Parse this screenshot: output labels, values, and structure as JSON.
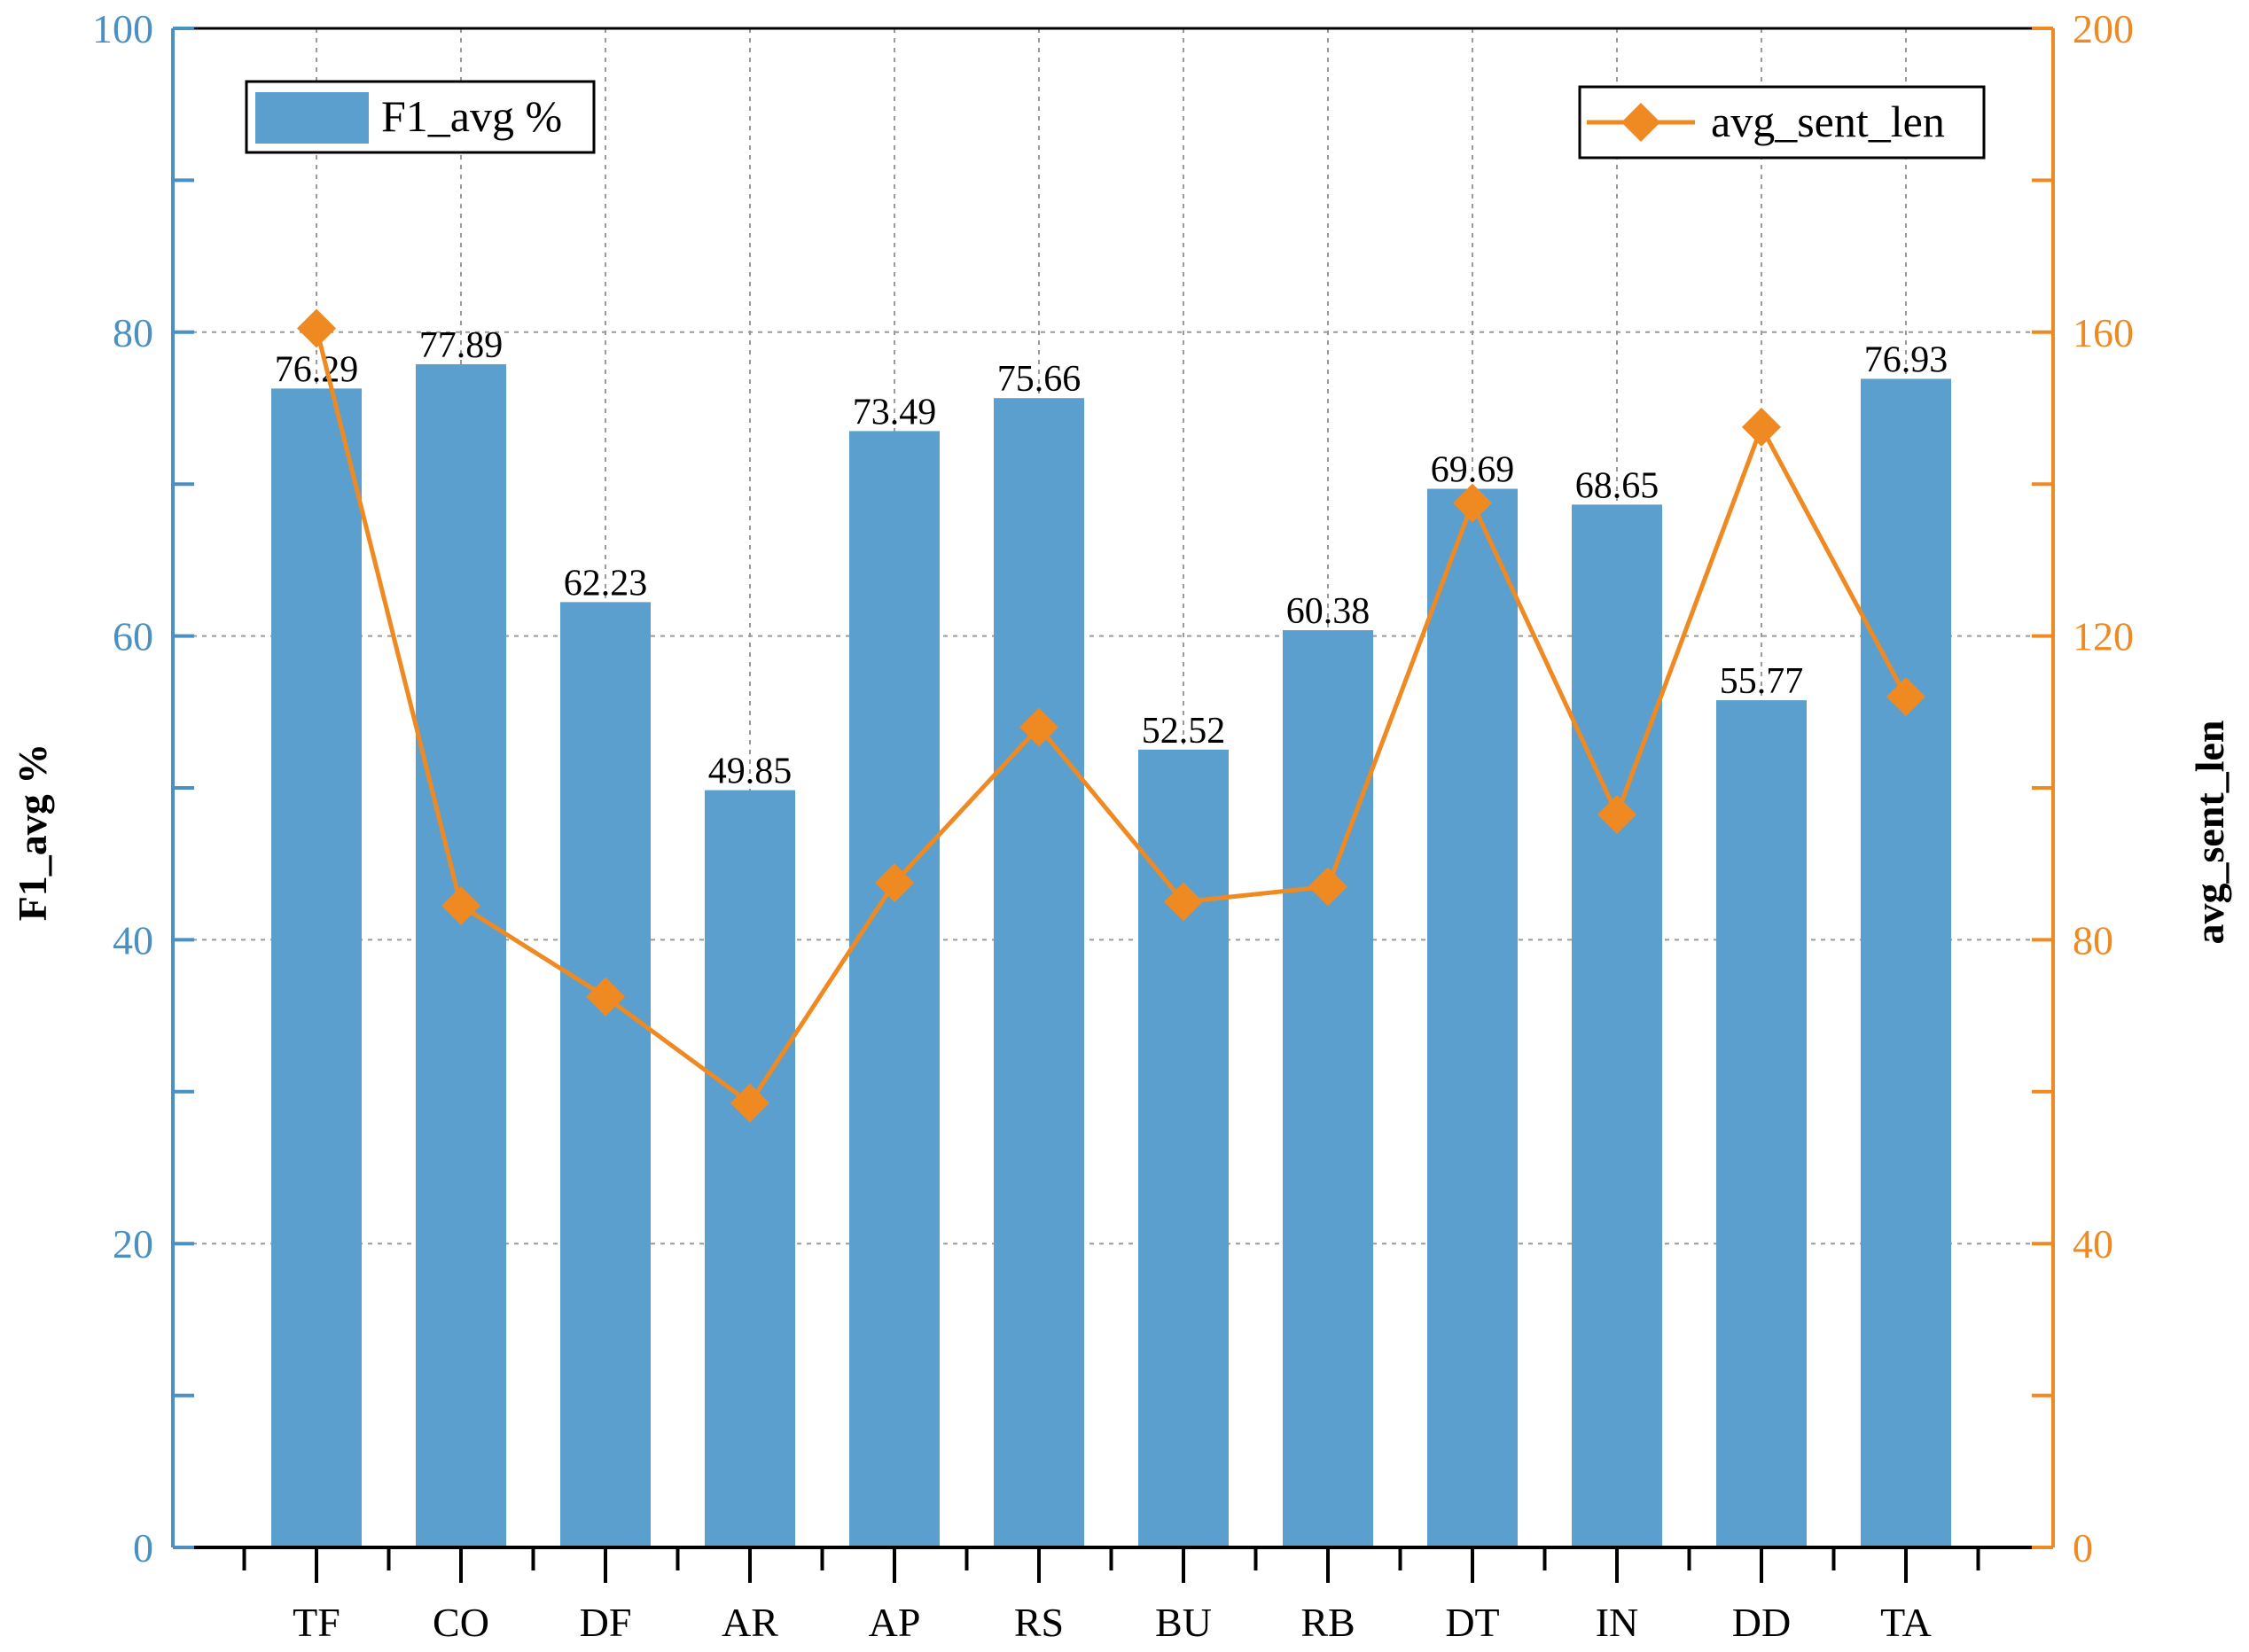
{
  "chart_data": {
    "type": "bar",
    "title": "",
    "categories": [
      "TF",
      "CO",
      "DF",
      "AR",
      "AP",
      "RS",
      "BU",
      "RB",
      "DT",
      "IN",
      "DD",
      "TA"
    ],
    "series": [
      {
        "name": "F1_avg %",
        "type": "bar",
        "axis": "left",
        "color": "#5b9fce",
        "values": [
          76.29,
          77.89,
          62.23,
          49.85,
          73.49,
          75.66,
          52.52,
          60.38,
          69.69,
          68.65,
          55.77,
          76.93
        ],
        "labels": [
          "76.29",
          "77.89",
          "62.23",
          "49.85",
          "73.49",
          "75.66",
          "52.52",
          "60.38",
          "69.69",
          "68.65",
          "55.77",
          "76.93"
        ]
      },
      {
        "name": "avg_sent_len",
        "type": "line",
        "marker": "diamond",
        "axis": "right",
        "color": "#ef8a23",
        "values": [
          160.5,
          84.5,
          72.5,
          58.5,
          87.5,
          108,
          85,
          87,
          137.5,
          96.5,
          147.5,
          112
        ]
      }
    ],
    "ylabel_left": "F1_avg %",
    "ylabel_right": "avg_sent_len",
    "ylim_left": [
      0,
      100
    ],
    "ylim_right": [
      0,
      200
    ],
    "yticks_left": [
      0,
      20,
      40,
      60,
      80,
      100
    ],
    "yticks_right": [
      0,
      40,
      80,
      120,
      160,
      200
    ],
    "left_axis_color": "#4a90c2",
    "right_axis_color": "#ef8a23",
    "grid": true,
    "legend_bar_position": "top-left",
    "legend_line_position": "top-right"
  }
}
